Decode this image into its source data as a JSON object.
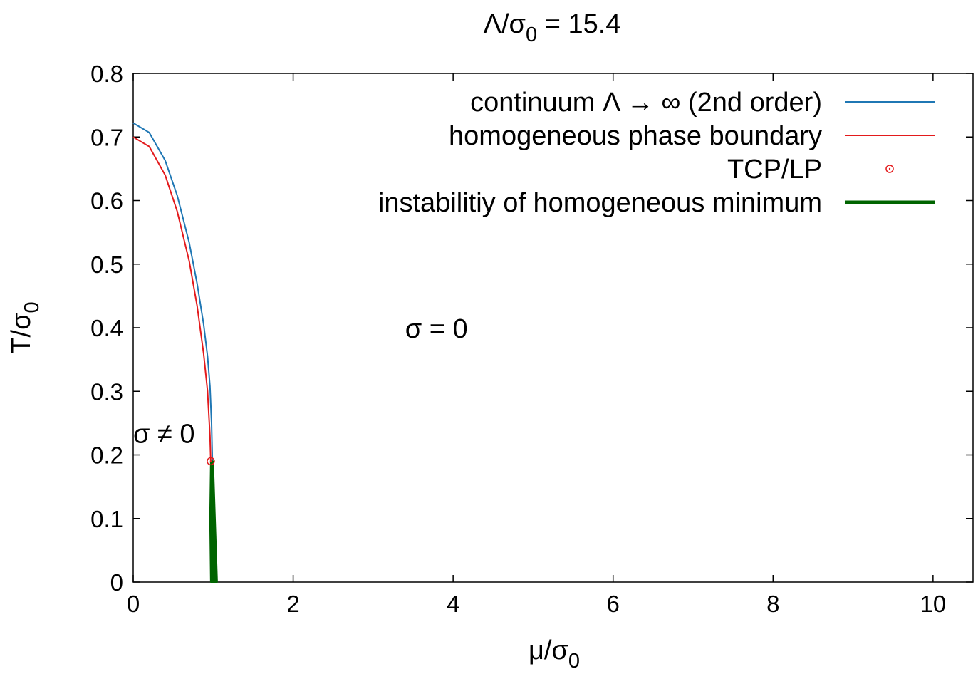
{
  "chart_data": {
    "type": "line",
    "title": {
      "main": "Λ/σ",
      "sub": "0",
      "tail": " = 15.4"
    },
    "xlabel": {
      "main": "μ/σ",
      "sub": "0"
    },
    "ylabel": {
      "main": "T/σ",
      "sub": "0"
    },
    "xlim": [
      0,
      10.5
    ],
    "ylim": [
      0,
      0.8
    ],
    "xticks": [
      "0",
      "2",
      "4",
      "6",
      "8",
      "10"
    ],
    "yticks": [
      "0",
      "0.1",
      "0.2",
      "0.3",
      "0.4",
      "0.5",
      "0.6",
      "0.7",
      "0.8"
    ],
    "legend_position": "top-right",
    "grid": false,
    "annotations": [
      {
        "text": "σ = 0",
        "x": 3.4,
        "y": 0.4
      },
      {
        "text": "σ  ≠ 0",
        "x": 0.0,
        "y": 0.235
      }
    ],
    "series": [
      {
        "name": "continuum Λ → ∞ (2nd order)",
        "color": "#1f77b4",
        "style": "line",
        "x": [
          0,
          0.2,
          0.4,
          0.55,
          0.7,
          0.8,
          0.88,
          0.93,
          0.96,
          0.98,
          0.99,
          1.0,
          1.0
        ],
        "y": [
          0.722,
          0.707,
          0.663,
          0.608,
          0.534,
          0.469,
          0.406,
          0.355,
          0.308,
          0.25,
          0.19,
          0.1,
          0
        ]
      },
      {
        "name": "homogeneous phase boundary",
        "color": "#e31a1c",
        "style": "line",
        "x": [
          0,
          0.2,
          0.4,
          0.55,
          0.7,
          0.8,
          0.88,
          0.93,
          0.96,
          0.97
        ],
        "y": [
          0.7,
          0.685,
          0.64,
          0.583,
          0.505,
          0.434,
          0.36,
          0.3,
          0.23,
          0.19
        ]
      },
      {
        "name": "TCP/LP",
        "color": "#e31a1c",
        "style": "point",
        "x": [
          0.97
        ],
        "y": [
          0.19
        ]
      },
      {
        "name": "instabilitiy of homogeneous minimum",
        "color": "#006400",
        "style": "band",
        "x": [
          0.97,
          0.96,
          0.97,
          0.99,
          1.05,
          1.0
        ],
        "y": [
          0.19,
          0.1,
          0.0,
          0.0,
          0.0,
          0.19
        ]
      }
    ]
  }
}
